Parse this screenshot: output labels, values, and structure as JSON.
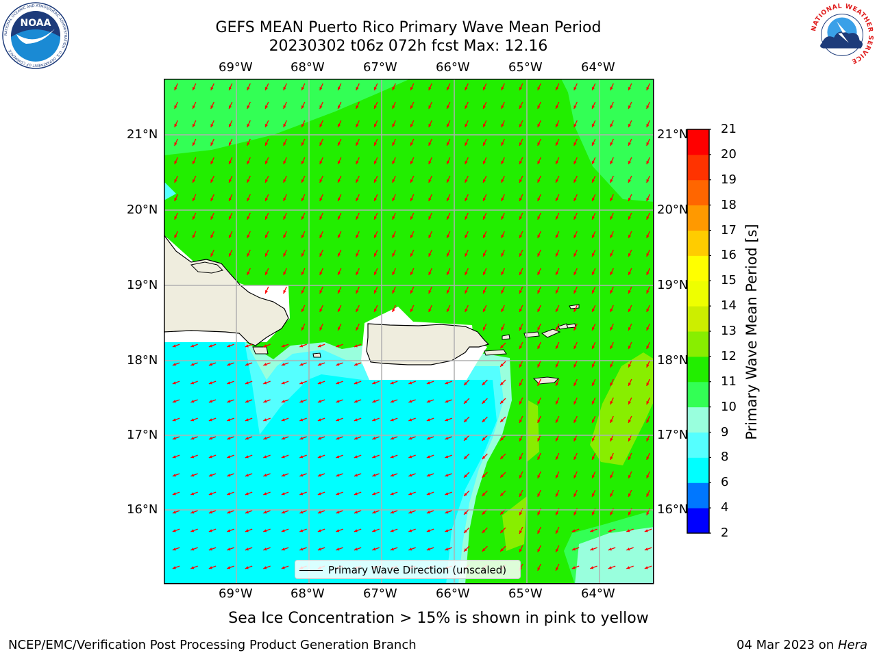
{
  "header": {
    "title_line1": "GEFS MEAN Puerto Rico Primary Wave Mean Period",
    "title_line2": "20230302 t06z 072h fcst   Max: 12.16"
  },
  "logos": {
    "left": {
      "name": "noaa-logo",
      "text": "NOAA",
      "ring_text": "NATIONAL OCEANIC AND ATMOSPHERIC ADMINISTRATION · U.S. DEPARTMENT OF COMMERCE"
    },
    "right": {
      "name": "nws-logo",
      "ring_text": "NATIONAL WEATHER SERVICE"
    }
  },
  "map": {
    "lon_labels": [
      "69°W",
      "68°W",
      "67°W",
      "66°W",
      "65°W",
      "64°W"
    ],
    "lat_labels": [
      "21°N",
      "20°N",
      "19°N",
      "18°N",
      "17°N",
      "16°N"
    ],
    "field": "Primary Wave Mean Period",
    "vector_field": "Primary Wave Direction",
    "colors": {
      "land": "#efedde",
      "coast": "#000000",
      "grid": "#b0b0b0",
      "arrow": "#ff0000"
    }
  },
  "legend": {
    "label": "Primary Wave Direction (unscaled)"
  },
  "colorbar": {
    "label": "Primary Wave Mean Period [s]",
    "ticks": [
      "21",
      "20",
      "19",
      "18",
      "17",
      "16",
      "15",
      "14",
      "13",
      "12",
      "11",
      "10",
      "9",
      "8",
      "6",
      "4",
      "2"
    ],
    "bands": [
      {
        "from": 2,
        "to": 4,
        "color": "#0000ff"
      },
      {
        "from": 4,
        "to": 6,
        "color": "#0077ff"
      },
      {
        "from": 6,
        "to": 8,
        "color": "#00ffff"
      },
      {
        "from": 8,
        "to": 9,
        "color": "#55ffff"
      },
      {
        "from": 9,
        "to": 10,
        "color": "#99ffdd"
      },
      {
        "from": 10,
        "to": 11,
        "color": "#33ff55"
      },
      {
        "from": 11,
        "to": 12,
        "color": "#22ee00"
      },
      {
        "from": 12,
        "to": 13,
        "color": "#88ee00"
      },
      {
        "from": 13,
        "to": 14,
        "color": "#ccee00"
      },
      {
        "from": 14,
        "to": 15,
        "color": "#eeff00"
      },
      {
        "from": 15,
        "to": 16,
        "color": "#ffff00"
      },
      {
        "from": 16,
        "to": 17,
        "color": "#ffcc00"
      },
      {
        "from": 17,
        "to": 18,
        "color": "#ff9900"
      },
      {
        "from": 18,
        "to": 19,
        "color": "#ff6600"
      },
      {
        "from": 19,
        "to": 20,
        "color": "#ff3300"
      },
      {
        "from": 20,
        "to": 21,
        "color": "#ff0000"
      }
    ]
  },
  "note": "Sea Ice Concentration > 15% is shown in pink to yellow",
  "footer": {
    "left": "NCEP/EMC/Verification Post Processing Product Generation Branch",
    "date": "04 Mar 2023 on",
    "machine": "Hera"
  }
}
